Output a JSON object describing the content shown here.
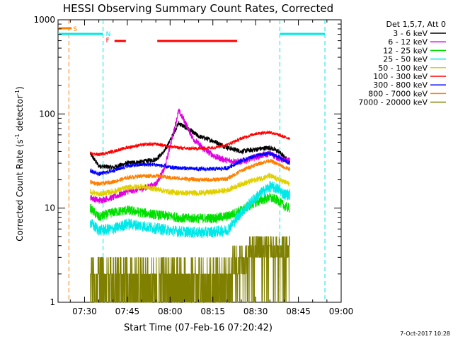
{
  "chart_data": {
    "type": "line",
    "title": "HESSI Observing Summary Count Rates, Corrected",
    "xlabel": "Start Time (07-Feb-16 07:20:42)",
    "ylabel_main": "Corrected Count Rate (s",
    "ylabel_sup1": "-1",
    "ylabel_mid": " detector",
    "ylabel_sup2": "-1",
    "ylabel_end": ")",
    "xlim_minutes": [
      440.7,
      540
    ],
    "ylim": [
      1,
      1000
    ],
    "yscale": "log",
    "grid": false,
    "x_ticks": [
      {
        "label": "07:30",
        "t": 450
      },
      {
        "label": "07:45",
        "t": 465
      },
      {
        "label": "08:00",
        "t": 480
      },
      {
        "label": "08:15",
        "t": 495
      },
      {
        "label": "08:30",
        "t": 510
      },
      {
        "label": "08:45",
        "t": 525
      },
      {
        "label": "09:00",
        "t": 540
      }
    ],
    "y_ticks": [
      {
        "label": "1",
        "v": 1
      },
      {
        "label": "10",
        "v": 10
      },
      {
        "label": "100",
        "v": 100
      },
      {
        "label": "1000",
        "v": 1000
      }
    ],
    "legend_title": "Det 1,5,7, Att 0",
    "series": [
      {
        "name": "3 - 6 keV",
        "color": "#000000",
        "points": [
          [
            452,
            38
          ],
          [
            455,
            28
          ],
          [
            460,
            27
          ],
          [
            465,
            30
          ],
          [
            470,
            31
          ],
          [
            475,
            33
          ],
          [
            478,
            40
          ],
          [
            481,
            60
          ],
          [
            483,
            80
          ],
          [
            486,
            70
          ],
          [
            490,
            58
          ],
          [
            495,
            52
          ],
          [
            500,
            44
          ],
          [
            505,
            40
          ],
          [
            510,
            42
          ],
          [
            515,
            44
          ],
          [
            518,
            40
          ],
          [
            520,
            35
          ],
          [
            522,
            30
          ]
        ]
      },
      {
        "name": "6 - 12 keV",
        "color": "#e000e0",
        "points": [
          [
            452,
            13
          ],
          [
            455,
            12
          ],
          [
            460,
            13
          ],
          [
            465,
            15
          ],
          [
            470,
            16
          ],
          [
            475,
            18
          ],
          [
            478,
            26
          ],
          [
            481,
            60
          ],
          [
            483,
            108
          ],
          [
            485,
            85
          ],
          [
            488,
            55
          ],
          [
            492,
            42
          ],
          [
            496,
            35
          ],
          [
            500,
            32
          ],
          [
            505,
            31
          ],
          [
            510,
            35
          ],
          [
            515,
            38
          ],
          [
            518,
            34
          ],
          [
            520,
            32
          ],
          [
            522,
            32
          ]
        ]
      },
      {
        "name": "12 - 25 keV",
        "color": "#00e000",
        "points": [
          [
            452,
            10
          ],
          [
            455,
            8
          ],
          [
            460,
            9
          ],
          [
            465,
            9.5
          ],
          [
            470,
            9
          ],
          [
            475,
            8.5
          ],
          [
            480,
            8.2
          ],
          [
            485,
            7.8
          ],
          [
            490,
            7.8
          ],
          [
            495,
            7.8
          ],
          [
            500,
            8.2
          ],
          [
            505,
            9.5
          ],
          [
            510,
            11.5
          ],
          [
            515,
            13
          ],
          [
            518,
            12
          ],
          [
            520,
            10.5
          ],
          [
            522,
            10
          ]
        ]
      },
      {
        "name": "25 - 50 keV",
        "color": "#00e8e8",
        "points": [
          [
            452,
            7
          ],
          [
            455,
            5.8
          ],
          [
            460,
            6
          ],
          [
            465,
            6.8
          ],
          [
            470,
            6.5
          ],
          [
            475,
            6.1
          ],
          [
            480,
            5.8
          ],
          [
            485,
            5.6
          ],
          [
            490,
            5.5
          ],
          [
            495,
            5.6
          ],
          [
            500,
            5.8
          ],
          [
            505,
            9
          ],
          [
            510,
            13
          ],
          [
            515,
            17
          ],
          [
            518,
            16
          ],
          [
            520,
            14
          ],
          [
            522,
            14
          ]
        ]
      },
      {
        "name": "50 - 100 keV",
        "color": "#e0d000",
        "points": [
          [
            452,
            15
          ],
          [
            455,
            14
          ],
          [
            460,
            15
          ],
          [
            465,
            16.5
          ],
          [
            470,
            17
          ],
          [
            475,
            16
          ],
          [
            480,
            14.8
          ],
          [
            485,
            14.5
          ],
          [
            490,
            14.5
          ],
          [
            495,
            14.8
          ],
          [
            500,
            15.5
          ],
          [
            505,
            18
          ],
          [
            510,
            20
          ],
          [
            515,
            22
          ],
          [
            518,
            20
          ],
          [
            520,
            19
          ],
          [
            522,
            18
          ]
        ]
      },
      {
        "name": "100 - 300 keV",
        "color": "#ff0000",
        "points": [
          [
            452,
            38
          ],
          [
            455,
            37
          ],
          [
            460,
            40
          ],
          [
            465,
            44
          ],
          [
            470,
            47
          ],
          [
            475,
            48
          ],
          [
            480,
            45
          ],
          [
            485,
            43
          ],
          [
            490,
            43
          ],
          [
            495,
            44
          ],
          [
            500,
            47
          ],
          [
            505,
            55
          ],
          [
            510,
            62
          ],
          [
            515,
            64
          ],
          [
            518,
            60
          ],
          [
            520,
            57
          ],
          [
            522,
            55
          ]
        ]
      },
      {
        "name": "300 - 800 keV",
        "color": "#0000ff",
        "points": [
          [
            452,
            25
          ],
          [
            455,
            23
          ],
          [
            460,
            25
          ],
          [
            465,
            28
          ],
          [
            470,
            29
          ],
          [
            475,
            29
          ],
          [
            480,
            27
          ],
          [
            485,
            26.5
          ],
          [
            490,
            26
          ],
          [
            495,
            26
          ],
          [
            500,
            26.5
          ],
          [
            505,
            32
          ],
          [
            510,
            36
          ],
          [
            515,
            38
          ],
          [
            518,
            35
          ],
          [
            520,
            32
          ],
          [
            522,
            30
          ]
        ]
      },
      {
        "name": "800 - 7000 keV",
        "color": "#ff8000",
        "points": [
          [
            452,
            19
          ],
          [
            455,
            18
          ],
          [
            460,
            19
          ],
          [
            465,
            21
          ],
          [
            470,
            22
          ],
          [
            475,
            22
          ],
          [
            480,
            21
          ],
          [
            485,
            20.5
          ],
          [
            490,
            20
          ],
          [
            495,
            20
          ],
          [
            500,
            20.5
          ],
          [
            505,
            25
          ],
          [
            510,
            29
          ],
          [
            515,
            32
          ],
          [
            518,
            29
          ],
          [
            520,
            27
          ],
          [
            522,
            26
          ]
        ]
      },
      {
        "name": "7000 - 20000 keV",
        "color": "#808000",
        "points": [
          [
            452,
            1.4
          ],
          [
            455,
            1.2
          ],
          [
            460,
            1.4
          ],
          [
            465,
            1.5
          ],
          [
            470,
            1.6
          ],
          [
            475,
            1.6
          ],
          [
            480,
            1.6
          ],
          [
            485,
            1.6
          ],
          [
            490,
            1.5
          ],
          [
            495,
            1.6
          ],
          [
            500,
            1.7
          ],
          [
            503,
            2.2
          ],
          [
            506,
            2.8
          ],
          [
            510,
            3.5
          ],
          [
            515,
            3.8
          ],
          [
            518,
            3.6
          ],
          [
            520,
            3.2
          ],
          [
            522,
            3.0
          ]
        ]
      }
    ],
    "annotations": {
      "vertical_lines": [
        {
          "t": 444.5,
          "color": "#ff8000"
        },
        {
          "t": 456.5,
          "color": "#00e8e8"
        },
        {
          "t": 518.5,
          "color": "#00e8e8"
        },
        {
          "t": 534.3,
          "color": "#00e8e8"
        }
      ],
      "markers": [
        {
          "label": "S",
          "t": 446,
          "color": "#ff8000"
        },
        {
          "label": "N",
          "t": 457.5,
          "color": "#00e8e8"
        },
        {
          "label": "F",
          "t": 457.5,
          "color": "#ff0000"
        }
      ],
      "bars": [
        {
          "color": "#00e8e8",
          "start": 440.7,
          "end": 456.5
        },
        {
          "color": "#00e8e8",
          "start": 518.5,
          "end": 534.3
        },
        {
          "color": "#ff8000",
          "start": 440.7,
          "end": 445.5
        },
        {
          "color": "#ff0000",
          "start": 460.5,
          "end": 464.5
        },
        {
          "color": "#ff0000",
          "start": 475.5,
          "end": 503.5
        }
      ]
    },
    "footer_date": "7-Oct-2017 10:28"
  }
}
